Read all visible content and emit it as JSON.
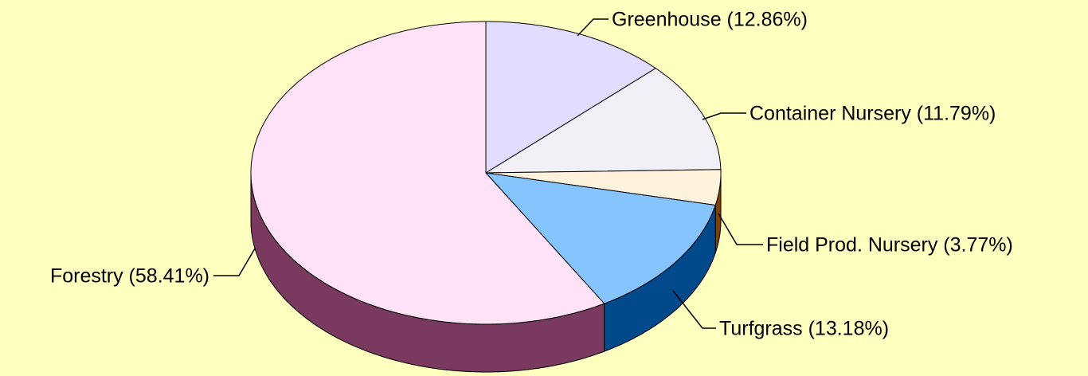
{
  "chart_data": {
    "type": "pie3d",
    "categories": [
      "Greenhouse (12.86%)",
      "Container Nursery (11.79%)",
      "Field Prod. Nursery (3.77%)",
      "Turfgrass (13.18%)",
      "Forestry (58.41%)"
    ],
    "values": [
      12.86,
      11.79,
      3.77,
      13.18,
      58.41
    ],
    "colors": [
      "#e2dcff",
      "#f2f0f6",
      "#fff2dc",
      "#86c4ff",
      "#ffe2f8"
    ],
    "side_colors": [
      "#6a6090",
      "#808080",
      "#804000",
      "#004a8c",
      "#7a3a60"
    ],
    "background": "#ffffc0"
  }
}
